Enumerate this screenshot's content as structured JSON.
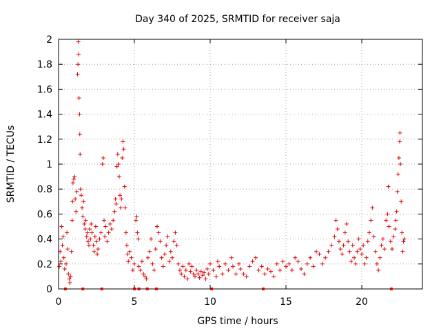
{
  "chart_data": {
    "type": "scatter",
    "title": "Day 340 of 2025, SRMTID for receiver saja",
    "xlabel": "GPS time / hours",
    "ylabel": "SRMTID / TECUs",
    "xlim": [
      0,
      24
    ],
    "ylim": [
      0,
      2
    ],
    "grid": true,
    "marker": "+",
    "color": "#e00000",
    "xticks": [
      {
        "value": 0,
        "label": "0"
      },
      {
        "value": 5,
        "label": "5"
      },
      {
        "value": 10,
        "label": "10"
      },
      {
        "value": 15,
        "label": "15"
      },
      {
        "value": 20,
        "label": "20"
      }
    ],
    "yticks": [
      {
        "value": 0,
        "label": "0"
      },
      {
        "value": 0.2,
        "label": "0.2"
      },
      {
        "value": 0.4,
        "label": "0.4"
      },
      {
        "value": 0.6,
        "label": "0.6"
      },
      {
        "value": 0.8,
        "label": "0.8"
      },
      {
        "value": 1,
        "label": "1"
      },
      {
        "value": 1.2,
        "label": "1.2"
      },
      {
        "value": 1.4,
        "label": "1.4"
      },
      {
        "value": 1.6,
        "label": "1.6"
      },
      {
        "value": 1.8,
        "label": "1.8"
      },
      {
        "value": 2,
        "label": "2"
      }
    ],
    "zero_markers_x": [
      0.45,
      1.6,
      2.85,
      5.0,
      5.3,
      5.85,
      6.45,
      10.1,
      13.5,
      21.95
    ],
    "series": [
      {
        "name": "SRMTID",
        "points": [
          [
            0.05,
            0.18
          ],
          [
            0.1,
            0.3
          ],
          [
            0.15,
            0.22
          ],
          [
            0.2,
            0.5
          ],
          [
            0.25,
            0.35
          ],
          [
            0.3,
            0.42
          ],
          [
            0.35,
            0.25
          ],
          [
            0.4,
            0.16
          ],
          [
            0.5,
            0.2
          ],
          [
            0.55,
            0.45
          ],
          [
            0.6,
            0.32
          ],
          [
            0.65,
            0.12
          ],
          [
            0.7,
            0.08
          ],
          [
            0.75,
            0.05
          ],
          [
            0.8,
            0.1
          ],
          [
            0.85,
            0.3
          ],
          [
            0.9,
            0.55
          ],
          [
            0.92,
            0.7
          ],
          [
            0.95,
            0.85
          ],
          [
            1.0,
            0.88
          ],
          [
            1.05,
            0.9
          ],
          [
            1.1,
            0.72
          ],
          [
            1.15,
            0.62
          ],
          [
            1.2,
            0.78
          ],
          [
            1.25,
            1.72
          ],
          [
            1.28,
            1.8
          ],
          [
            1.3,
            1.98
          ],
          [
            1.32,
            1.88
          ],
          [
            1.35,
            1.53
          ],
          [
            1.38,
            1.4
          ],
          [
            1.4,
            1.24
          ],
          [
            1.42,
            1.08
          ],
          [
            1.45,
            0.8
          ],
          [
            1.5,
            0.75
          ],
          [
            1.55,
            0.65
          ],
          [
            1.6,
            0.58
          ],
          [
            1.65,
            0.7
          ],
          [
            1.7,
            0.52
          ],
          [
            1.75,
            0.48
          ],
          [
            1.8,
            0.55
          ],
          [
            1.85,
            0.42
          ],
          [
            1.9,
            0.45
          ],
          [
            1.95,
            0.38
          ],
          [
            2.0,
            0.35
          ],
          [
            2.05,
            0.48
          ],
          [
            2.1,
            0.4
          ],
          [
            2.15,
            0.52
          ],
          [
            2.2,
            0.45
          ],
          [
            2.3,
            0.35
          ],
          [
            2.35,
            0.3
          ],
          [
            2.4,
            0.42
          ],
          [
            2.45,
            0.5
          ],
          [
            2.5,
            0.38
          ],
          [
            2.55,
            0.28
          ],
          [
            2.6,
            0.32
          ],
          [
            2.7,
            0.4
          ],
          [
            2.8,
            0.45
          ],
          [
            2.9,
            1.0
          ],
          [
            2.95,
            1.05
          ],
          [
            3.0,
            0.55
          ],
          [
            3.05,
            0.42
          ],
          [
            3.1,
            0.5
          ],
          [
            3.2,
            0.38
          ],
          [
            3.3,
            0.45
          ],
          [
            3.4,
            0.52
          ],
          [
            3.5,
            0.48
          ],
          [
            3.6,
            0.55
          ],
          [
            3.7,
            0.62
          ],
          [
            3.75,
            0.72
          ],
          [
            3.8,
            0.68
          ],
          [
            3.85,
            0.98
          ],
          [
            3.9,
            1.08
          ],
          [
            3.95,
            1.0
          ],
          [
            4.0,
            0.9
          ],
          [
            4.05,
            0.75
          ],
          [
            4.1,
            0.65
          ],
          [
            4.15,
            0.72
          ],
          [
            4.2,
            1.05
          ],
          [
            4.25,
            1.18
          ],
          [
            4.3,
            1.12
          ],
          [
            4.35,
            0.82
          ],
          [
            4.4,
            0.65
          ],
          [
            4.45,
            0.45
          ],
          [
            4.5,
            0.35
          ],
          [
            4.55,
            0.28
          ],
          [
            4.6,
            0.22
          ],
          [
            4.7,
            0.3
          ],
          [
            4.8,
            0.25
          ],
          [
            4.9,
            0.15
          ],
          [
            5.0,
            0.2
          ],
          [
            5.1,
            0.55
          ],
          [
            5.15,
            0.58
          ],
          [
            5.2,
            0.45
          ],
          [
            5.25,
            0.4
          ],
          [
            5.3,
            0.18
          ],
          [
            5.4,
            0.15
          ],
          [
            5.5,
            0.22
          ],
          [
            5.6,
            0.12
          ],
          [
            5.7,
            0.1
          ],
          [
            5.8,
            0.08
          ],
          [
            5.9,
            0.25
          ],
          [
            6.0,
            0.3
          ],
          [
            6.1,
            0.4
          ],
          [
            6.2,
            0.2
          ],
          [
            6.3,
            0.15
          ],
          [
            6.4,
            0.32
          ],
          [
            6.5,
            0.5
          ],
          [
            6.6,
            0.45
          ],
          [
            6.7,
            0.38
          ],
          [
            6.8,
            0.25
          ],
          [
            6.9,
            0.18
          ],
          [
            7.0,
            0.28
          ],
          [
            7.1,
            0.35
          ],
          [
            7.2,
            0.42
          ],
          [
            7.3,
            0.22
          ],
          [
            7.4,
            0.3
          ],
          [
            7.5,
            0.25
          ],
          [
            7.6,
            0.38
          ],
          [
            7.7,
            0.45
          ],
          [
            7.8,
            0.35
          ],
          [
            7.9,
            0.2
          ],
          [
            8.0,
            0.15
          ],
          [
            8.1,
            0.12
          ],
          [
            8.2,
            0.18
          ],
          [
            8.3,
            0.1
          ],
          [
            8.4,
            0.15
          ],
          [
            8.5,
            0.08
          ],
          [
            8.6,
            0.2
          ],
          [
            8.7,
            0.14
          ],
          [
            8.8,
            0.18
          ],
          [
            8.9,
            0.12
          ],
          [
            9.0,
            0.1
          ],
          [
            9.1,
            0.15
          ],
          [
            9.2,
            0.12
          ],
          [
            9.3,
            0.09
          ],
          [
            9.4,
            0.14
          ],
          [
            9.5,
            0.11
          ],
          [
            9.6,
            0.13
          ],
          [
            9.7,
            0.08
          ],
          [
            9.8,
            0.16
          ],
          [
            9.9,
            0.12
          ],
          [
            10.0,
            0.2
          ],
          [
            10.2,
            0.15
          ],
          [
            10.4,
            0.1
          ],
          [
            10.5,
            0.22
          ],
          [
            10.6,
            0.18
          ],
          [
            10.8,
            0.12
          ],
          [
            11.0,
            0.2
          ],
          [
            11.2,
            0.15
          ],
          [
            11.4,
            0.25
          ],
          [
            11.5,
            0.18
          ],
          [
            11.7,
            0.12
          ],
          [
            11.9,
            0.2
          ],
          [
            12.0,
            0.16
          ],
          [
            12.2,
            0.12
          ],
          [
            12.4,
            0.1
          ],
          [
            12.6,
            0.18
          ],
          [
            12.8,
            0.22
          ],
          [
            13.0,
            0.25
          ],
          [
            13.2,
            0.15
          ],
          [
            13.4,
            0.18
          ],
          [
            13.6,
            0.12
          ],
          [
            13.8,
            0.16
          ],
          [
            14.0,
            0.14
          ],
          [
            14.2,
            0.1
          ],
          [
            14.4,
            0.2
          ],
          [
            14.6,
            0.15
          ],
          [
            14.8,
            0.22
          ],
          [
            15.0,
            0.18
          ],
          [
            15.2,
            0.2
          ],
          [
            15.4,
            0.15
          ],
          [
            15.6,
            0.25
          ],
          [
            15.8,
            0.22
          ],
          [
            16.0,
            0.16
          ],
          [
            16.2,
            0.12
          ],
          [
            16.4,
            0.2
          ],
          [
            16.6,
            0.25
          ],
          [
            16.8,
            0.18
          ],
          [
            17.0,
            0.3
          ],
          [
            17.2,
            0.28
          ],
          [
            17.4,
            0.2
          ],
          [
            17.6,
            0.25
          ],
          [
            17.8,
            0.3
          ],
          [
            18.0,
            0.35
          ],
          [
            18.2,
            0.42
          ],
          [
            18.3,
            0.55
          ],
          [
            18.4,
            0.48
          ],
          [
            18.5,
            0.38
          ],
          [
            18.6,
            0.32
          ],
          [
            18.7,
            0.28
          ],
          [
            18.8,
            0.35
          ],
          [
            18.9,
            0.45
          ],
          [
            19.0,
            0.52
          ],
          [
            19.1,
            0.38
          ],
          [
            19.2,
            0.3
          ],
          [
            19.3,
            0.22
          ],
          [
            19.4,
            0.35
          ],
          [
            19.5,
            0.25
          ],
          [
            19.6,
            0.2
          ],
          [
            19.7,
            0.3
          ],
          [
            19.8,
            0.4
          ],
          [
            19.9,
            0.32
          ],
          [
            20.0,
            0.28
          ],
          [
            20.1,
            0.35
          ],
          [
            20.2,
            0.2
          ],
          [
            20.3,
            0.25
          ],
          [
            20.4,
            0.38
          ],
          [
            20.5,
            0.45
          ],
          [
            20.6,
            0.55
          ],
          [
            20.7,
            0.65
          ],
          [
            20.8,
            0.42
          ],
          [
            20.9,
            0.3
          ],
          [
            21.0,
            0.2
          ],
          [
            21.1,
            0.15
          ],
          [
            21.2,
            0.25
          ],
          [
            21.3,
            0.35
          ],
          [
            21.4,
            0.4
          ],
          [
            21.5,
            0.32
          ],
          [
            21.6,
            0.55
          ],
          [
            21.7,
            0.6
          ],
          [
            21.75,
            0.82
          ],
          [
            21.8,
            0.5
          ],
          [
            21.9,
            0.38
          ],
          [
            22.0,
            0.32
          ],
          [
            22.1,
            0.42
          ],
          [
            22.2,
            0.48
          ],
          [
            22.25,
            0.55
          ],
          [
            22.3,
            0.62
          ],
          [
            22.35,
            0.78
          ],
          [
            22.4,
            0.92
          ],
          [
            22.45,
            1.05
          ],
          [
            22.5,
            1.18
          ],
          [
            22.52,
            1.25
          ],
          [
            22.55,
            1.0
          ],
          [
            22.6,
            0.7
          ],
          [
            22.65,
            0.45
          ],
          [
            22.7,
            0.3
          ],
          [
            22.75,
            0.38
          ],
          [
            22.8,
            0.4
          ]
        ]
      }
    ]
  }
}
